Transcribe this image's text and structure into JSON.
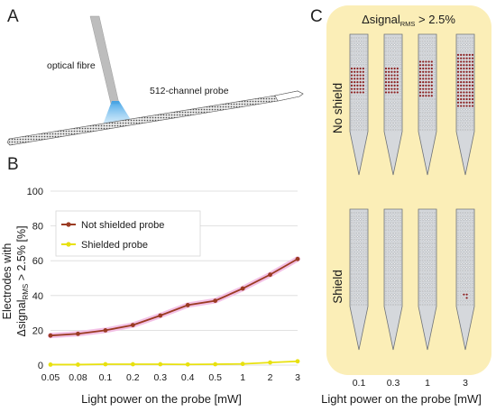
{
  "panels": {
    "a": {
      "letter": "A",
      "fibre_label": "optical fibre",
      "probe_label": "512-channel probe"
    },
    "b": {
      "letter": "B"
    },
    "c": {
      "letter": "C",
      "title_main": "Δsignal",
      "title_sub": "RMS",
      "title_rest": " > 2.5%",
      "row_labels": [
        "No shield",
        "Shield"
      ],
      "row_colors": [
        "#b23a2e",
        "#e8d21a"
      ],
      "background_color": "#fbeeb7",
      "xticks": [
        "0.1",
        "0.3",
        "1",
        "3"
      ],
      "xlabel": "Light power on the probe [mW]"
    }
  },
  "chart_data": {
    "type": "line",
    "categories": [
      "0.05",
      "0.08",
      "0.1",
      "0.2",
      "0.3",
      "0.4",
      "0.5",
      "1",
      "2",
      "3"
    ],
    "series": [
      {
        "name": "Not shielded probe",
        "color": "#9b3b23",
        "values": [
          17,
          18,
          20,
          23,
          28.5,
          34.5,
          37,
          44,
          52,
          61
        ]
      },
      {
        "name": "Shielded probe",
        "color": "#e8e10f",
        "values": [
          0.3,
          0.3,
          0.5,
          0.5,
          0.5,
          0.4,
          0.5,
          0.7,
          1.5,
          2.2
        ]
      }
    ],
    "ylabel_line1": "Electrodes with",
    "ylabel_main": "Δsignal",
    "ylabel_sub": "RMS",
    "ylabel_rest": " > 2.5% [%]",
    "xlabel": "Light power on the probe [mW]",
    "ylim": [
      0,
      100
    ],
    "yticks": [
      "0",
      "20",
      "40",
      "60",
      "80",
      "100"
    ],
    "grid": true,
    "legend_position": "top-left"
  }
}
